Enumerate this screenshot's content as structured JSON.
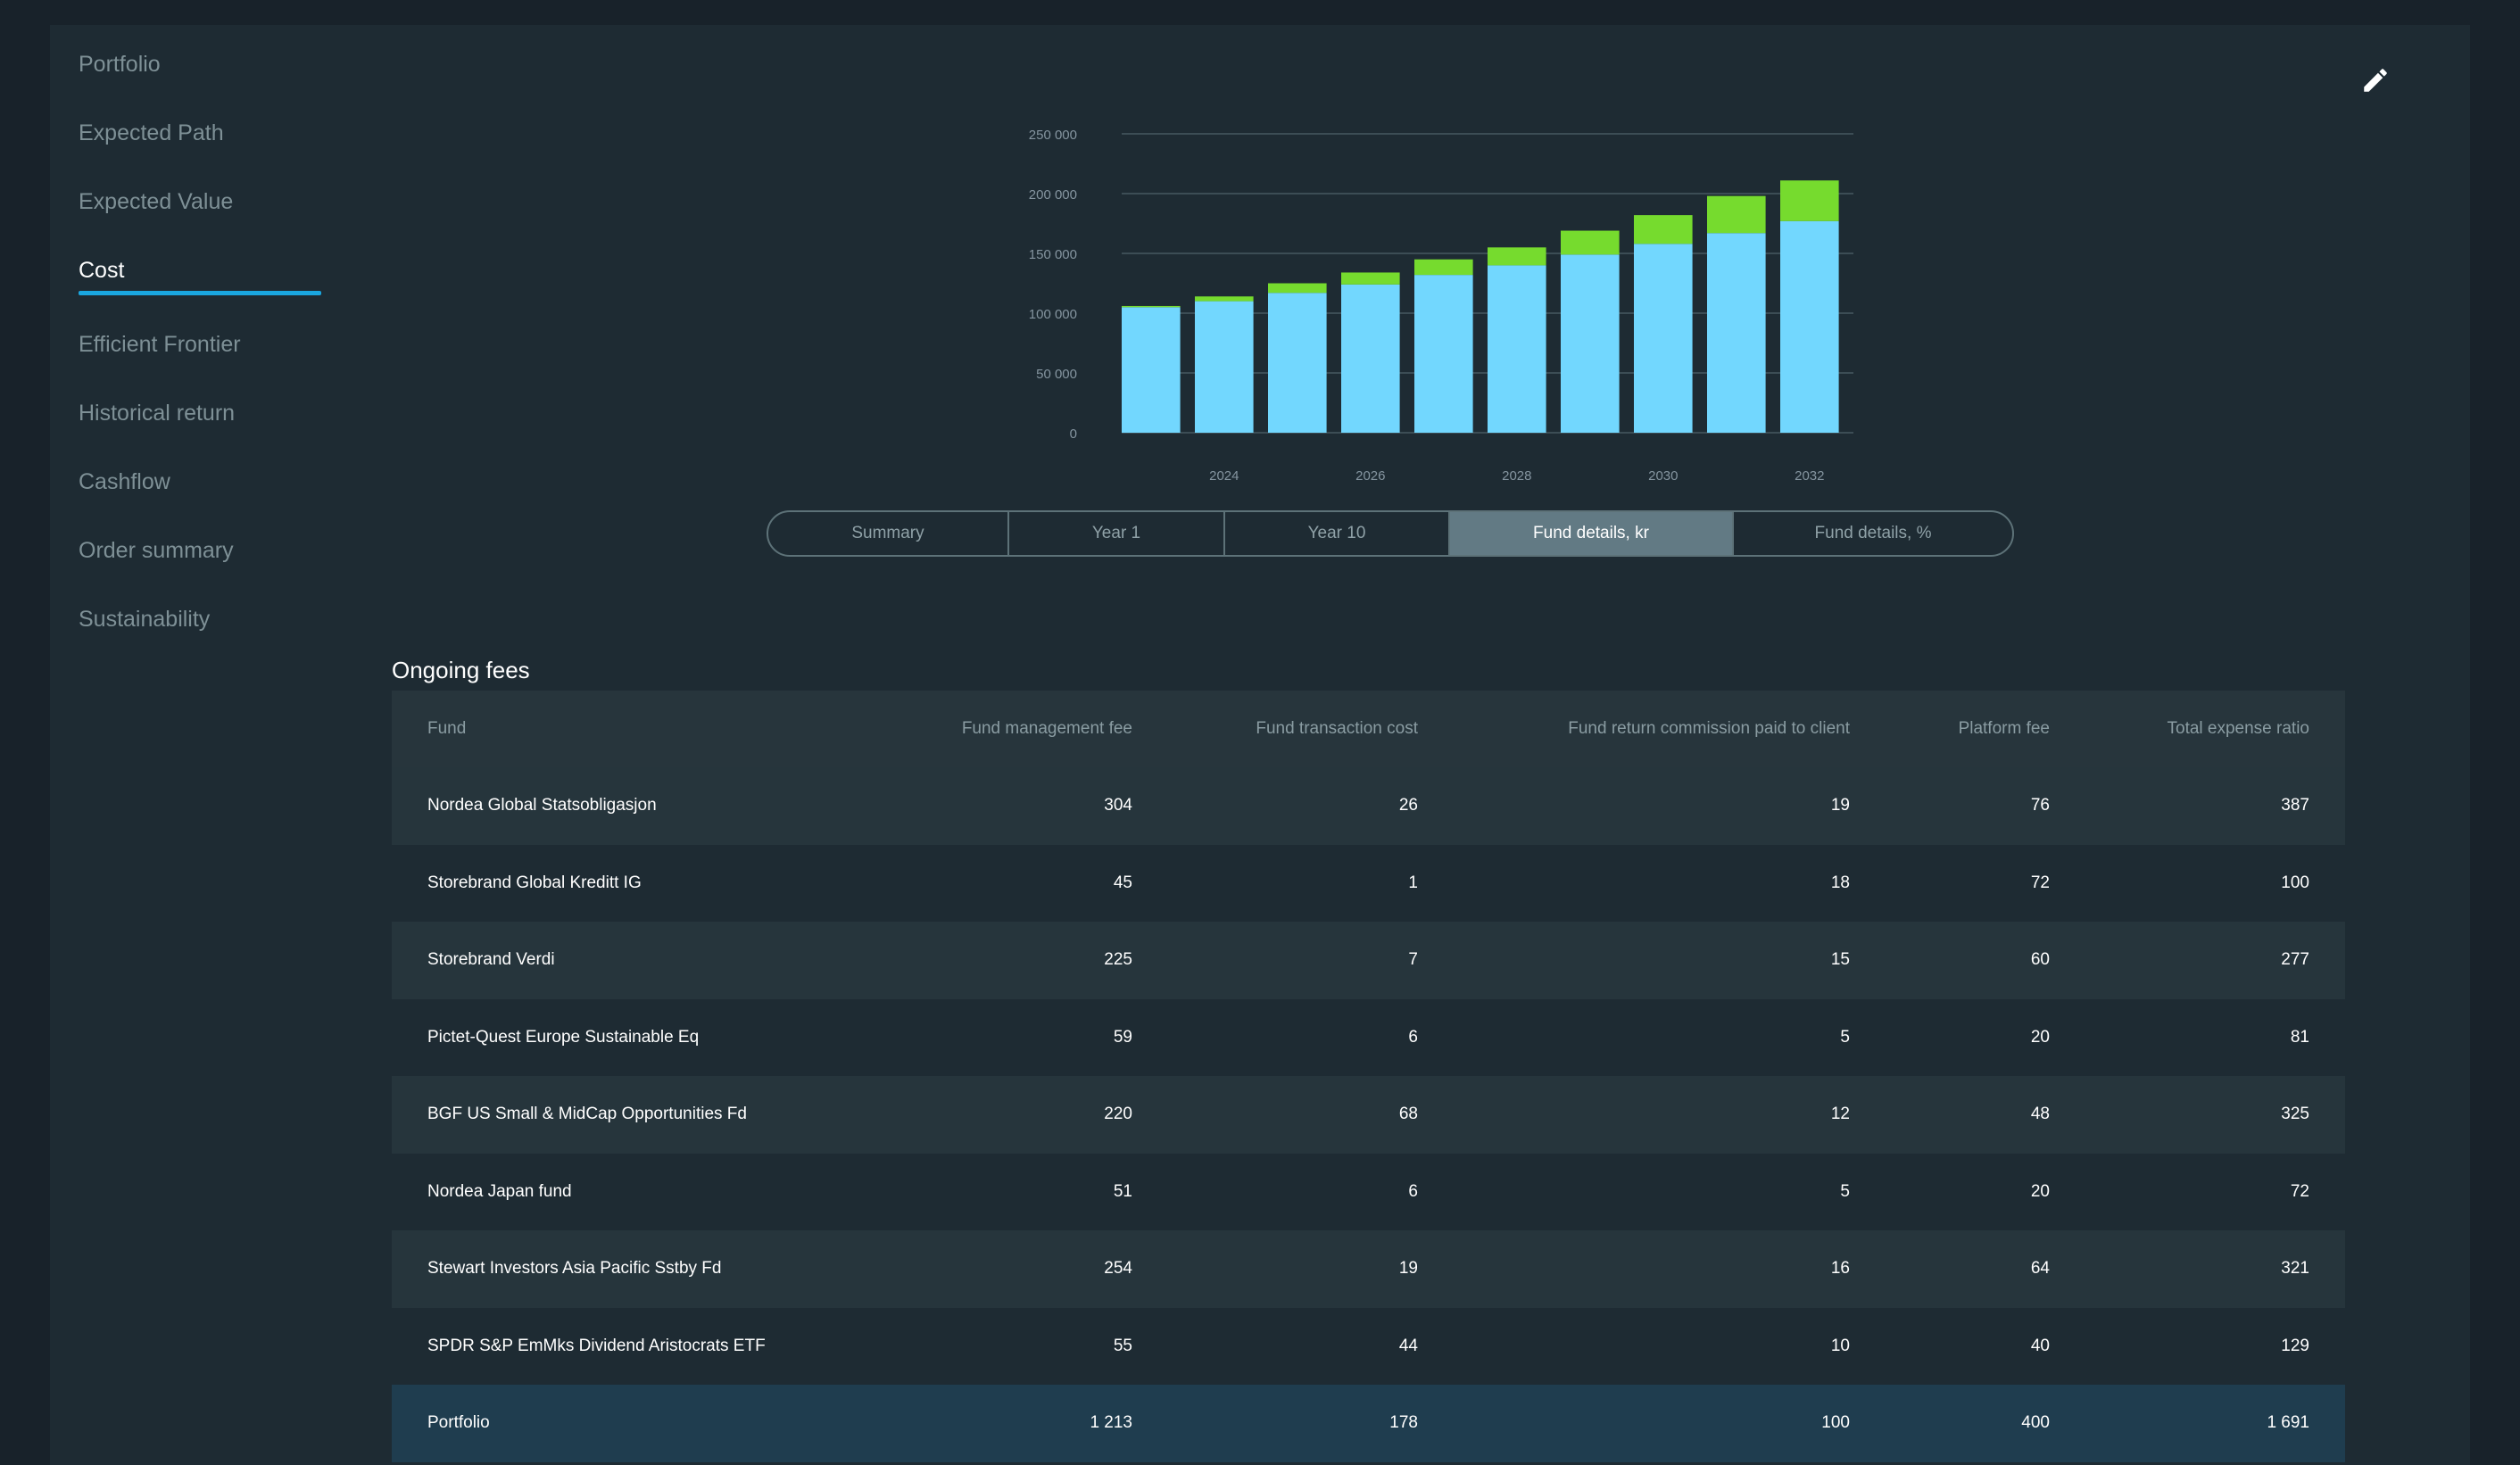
{
  "nav": {
    "items": [
      {
        "label": "Portfolio",
        "active": false
      },
      {
        "label": "Expected Path",
        "active": false
      },
      {
        "label": "Expected Value",
        "active": false
      },
      {
        "label": "Cost",
        "active": true
      },
      {
        "label": "Efficient Frontier",
        "active": false
      },
      {
        "label": "Historical return",
        "active": false
      },
      {
        "label": "Cashflow",
        "active": false
      },
      {
        "label": "Order summary",
        "active": false
      },
      {
        "label": "Sustainability",
        "active": false
      }
    ]
  },
  "toolbar": {
    "edit_icon": "pencil-icon"
  },
  "chart_data": {
    "type": "bar",
    "stacked": true,
    "categories": [
      "2023",
      "2024",
      "2025",
      "2026",
      "2027",
      "2028",
      "2029",
      "2030",
      "2031",
      "2032"
    ],
    "x_tick_labels": [
      "2024",
      "2026",
      "2028",
      "2030",
      "2032"
    ],
    "series": [
      {
        "color": "#72d7fe",
        "values": [
          105000,
          110000,
          117000,
          124000,
          132000,
          140000,
          149000,
          158000,
          167000,
          177000
        ]
      },
      {
        "color": "#76db2e",
        "values": [
          1000,
          4000,
          8000,
          10000,
          13000,
          15000,
          20000,
          24000,
          31000,
          34000
        ]
      }
    ],
    "ylim": [
      0,
      250000
    ],
    "y_ticks": [
      {
        "value": 0,
        "label": "0"
      },
      {
        "value": 50000,
        "label": "50 000"
      },
      {
        "value": 100000,
        "label": "100 000"
      },
      {
        "value": 150000,
        "label": "150 000"
      },
      {
        "value": 200000,
        "label": "200 000"
      },
      {
        "value": 250000,
        "label": "250 000"
      }
    ],
    "grid": true,
    "title": "",
    "xlabel": "",
    "ylabel": ""
  },
  "tabs": [
    {
      "label": "Summary",
      "active": false
    },
    {
      "label": "Year 1",
      "active": false
    },
    {
      "label": "Year 10",
      "active": false
    },
    {
      "label": "Fund details, kr",
      "active": true
    },
    {
      "label": "Fund details, %",
      "active": false
    }
  ],
  "section": {
    "title": "Ongoing fees"
  },
  "table": {
    "columns": [
      "Fund",
      "Fund management fee",
      "Fund transaction cost",
      "Fund return commission paid to client",
      "Platform fee",
      "Total expense ratio"
    ],
    "rows": [
      [
        "Nordea Global Statsobligasjon",
        "304",
        "26",
        "19",
        "76",
        "387"
      ],
      [
        "Storebrand Global Kreditt IG",
        "45",
        "1",
        "18",
        "72",
        "100"
      ],
      [
        "Storebrand Verdi",
        "225",
        "7",
        "15",
        "60",
        "277"
      ],
      [
        "Pictet-Quest Europe Sustainable Eq",
        "59",
        "6",
        "5",
        "20",
        "81"
      ],
      [
        "BGF US Small & MidCap Opportunities Fd",
        "220",
        "68",
        "12",
        "48",
        "325"
      ],
      [
        "Nordea Japan fund",
        "51",
        "6",
        "5",
        "20",
        "72"
      ],
      [
        "Stewart Investors Asia Pacific Sstby Fd",
        "254",
        "19",
        "16",
        "64",
        "321"
      ],
      [
        "SPDR S&P EmMks Dividend Aristocrats ETF",
        "55",
        "44",
        "10",
        "40",
        "129"
      ]
    ],
    "total": [
      "Portfolio",
      "1 213",
      "178",
      "100",
      "400",
      "1 691"
    ]
  }
}
